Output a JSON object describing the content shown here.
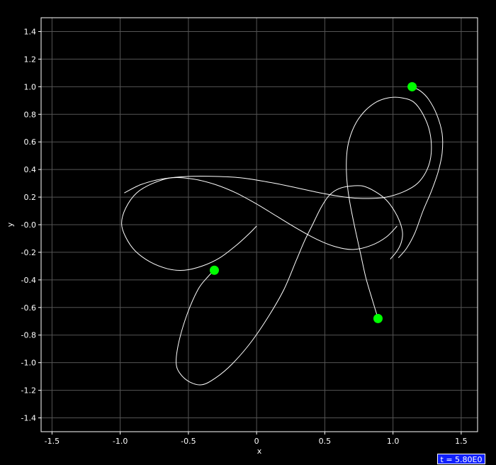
{
  "chart_data": {
    "type": "line",
    "xlabel": "x",
    "ylabel": "y",
    "xlim": [
      -1.58,
      1.62
    ],
    "ylim": [
      -1.5,
      1.5
    ],
    "xticks": [
      -1.5,
      -1.0,
      -0.5,
      0,
      0.5,
      1.0,
      1.5
    ],
    "xtick_labels": [
      "-1.5",
      "-1.0",
      "-0.5",
      "0",
      "0.5",
      "1.0",
      "1.5"
    ],
    "yticks": [
      1.4,
      1.2,
      1.0,
      0.8,
      0.6,
      0.4,
      0.2,
      0.0,
      -0.2,
      -0.4,
      -0.6,
      -0.8,
      -1.0,
      -1.2,
      -1.4
    ],
    "ytick_labels": [
      "1.4",
      "1.2",
      "1.0",
      "0.8",
      "0.6",
      "0.4",
      "0.2",
      "-0.0",
      "-0.2",
      "-0.4",
      "-0.6",
      "-0.8",
      "-1.0",
      "-1.2",
      "-1.4"
    ],
    "grid": true,
    "colors": {
      "background": "#000000",
      "grid": "#555555",
      "frame": "#ffffff",
      "trail": "#ffffff",
      "body": "#00ff00"
    },
    "series": [
      {
        "points": [
          [
            -0.31,
            -0.33
          ],
          [
            -0.36,
            -0.38
          ],
          [
            -0.43,
            -0.47
          ],
          [
            -0.51,
            -0.65
          ],
          [
            -0.57,
            -0.85
          ],
          [
            -0.59,
            -1.0
          ],
          [
            -0.56,
            -1.08
          ],
          [
            -0.49,
            -1.14
          ],
          [
            -0.4,
            -1.16
          ],
          [
            -0.3,
            -1.11
          ],
          [
            -0.18,
            -1.01
          ],
          [
            -0.04,
            -0.85
          ],
          [
            0.09,
            -0.66
          ],
          [
            0.2,
            -0.47
          ],
          [
            0.29,
            -0.26
          ],
          [
            0.35,
            -0.12
          ],
          [
            0.41,
            0.0
          ],
          [
            0.47,
            0.12
          ],
          [
            0.53,
            0.21
          ],
          [
            0.6,
            0.26
          ],
          [
            0.69,
            0.28
          ],
          [
            0.78,
            0.28
          ],
          [
            0.87,
            0.24
          ],
          [
            0.95,
            0.18
          ],
          [
            1.01,
            0.1
          ],
          [
            1.05,
            0.02
          ],
          [
            1.07,
            -0.06
          ],
          [
            1.06,
            -0.13
          ],
          [
            1.03,
            -0.19
          ],
          [
            0.98,
            -0.25
          ]
        ]
      },
      {
        "points": [
          [
            0.89,
            -0.68
          ],
          [
            0.85,
            -0.55
          ],
          [
            0.8,
            -0.38
          ],
          [
            0.76,
            -0.2
          ],
          [
            0.72,
            -0.02
          ],
          [
            0.68,
            0.18
          ],
          [
            0.66,
            0.35
          ],
          [
            0.66,
            0.5
          ],
          [
            0.68,
            0.62
          ],
          [
            0.73,
            0.74
          ],
          [
            0.8,
            0.83
          ],
          [
            0.88,
            0.89
          ],
          [
            0.97,
            0.92
          ],
          [
            1.06,
            0.92
          ],
          [
            1.15,
            0.89
          ],
          [
            1.22,
            0.8
          ],
          [
            1.27,
            0.67
          ],
          [
            1.28,
            0.52
          ],
          [
            1.25,
            0.4
          ],
          [
            1.18,
            0.3
          ],
          [
            1.08,
            0.24
          ],
          [
            0.95,
            0.2
          ],
          [
            0.8,
            0.19
          ],
          [
            0.65,
            0.2
          ],
          [
            0.47,
            0.23
          ],
          [
            0.28,
            0.27
          ],
          [
            0.08,
            0.31
          ],
          [
            -0.12,
            0.34
          ],
          [
            -0.3,
            0.35
          ],
          [
            -0.5,
            0.35
          ],
          [
            -0.7,
            0.33
          ],
          [
            -0.85,
            0.29
          ],
          [
            -0.97,
            0.23
          ]
        ]
      },
      {
        "points": [
          [
            1.14,
            1.0
          ],
          [
            1.2,
            0.97
          ],
          [
            1.26,
            0.91
          ],
          [
            1.32,
            0.8
          ],
          [
            1.36,
            0.66
          ],
          [
            1.36,
            0.52
          ],
          [
            1.33,
            0.38
          ],
          [
            1.28,
            0.24
          ],
          [
            1.22,
            0.1
          ],
          [
            1.16,
            -0.06
          ],
          [
            1.1,
            -0.17
          ],
          [
            1.04,
            -0.24
          ]
        ]
      },
      {
        "points": [
          [
            0.0,
            -0.01
          ],
          [
            -0.06,
            -0.07
          ],
          [
            -0.15,
            -0.15
          ],
          [
            -0.27,
            -0.24
          ],
          [
            -0.4,
            -0.3
          ],
          [
            -0.53,
            -0.33
          ],
          [
            -0.65,
            -0.32
          ],
          [
            -0.78,
            -0.27
          ],
          [
            -0.89,
            -0.19
          ],
          [
            -0.96,
            -0.09
          ],
          [
            -0.99,
            0.01
          ],
          [
            -0.96,
            0.12
          ],
          [
            -0.88,
            0.23
          ],
          [
            -0.76,
            0.3
          ],
          [
            -0.62,
            0.34
          ],
          [
            -0.46,
            0.33
          ],
          [
            -0.3,
            0.29
          ],
          [
            -0.15,
            0.23
          ],
          [
            0.0,
            0.15
          ],
          [
            0.15,
            0.06
          ],
          [
            0.3,
            -0.03
          ],
          [
            0.45,
            -0.11
          ],
          [
            0.58,
            -0.16
          ],
          [
            0.71,
            -0.18
          ],
          [
            0.84,
            -0.15
          ],
          [
            0.95,
            -0.09
          ],
          [
            1.03,
            -0.01
          ]
        ]
      }
    ],
    "bodies": [
      {
        "x": 1.14,
        "y": 1.0
      },
      {
        "x": -0.31,
        "y": -0.33
      },
      {
        "x": 0.89,
        "y": -0.68
      }
    ]
  },
  "time_label": "t = 5.80E0"
}
